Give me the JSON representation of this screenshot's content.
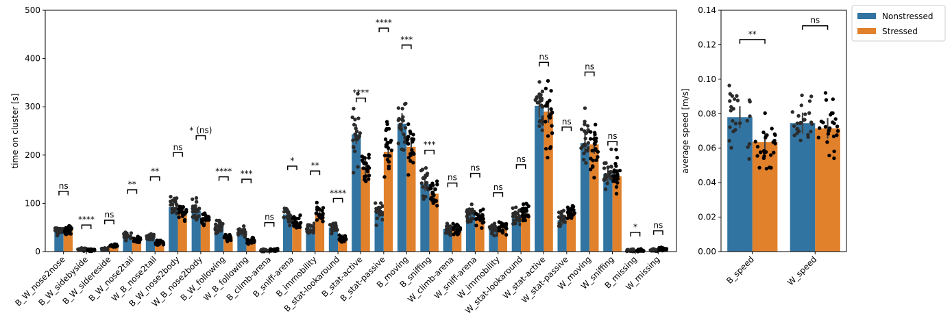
{
  "colors": {
    "nonstressed": "#3274a1",
    "stressed": "#e1812c",
    "dot_dark": "#2b2b2b",
    "dot_black": "#000000"
  },
  "legend": {
    "placement": "upper-right-outside",
    "entries": [
      "Nonstressed",
      "Stressed"
    ]
  },
  "chart_data": [
    {
      "type": "bar",
      "ylabel": "time on cluster [s]",
      "ylim": [
        0,
        500
      ],
      "yticks": [
        0,
        100,
        200,
        300,
        400,
        500
      ],
      "categories": [
        "B_W_nose2nose",
        "B_W_sidebyside",
        "B_W_sidereside",
        "B_W_nose2tail",
        "W_B_nose2tail",
        "B_W_nose2body",
        "W_B_nose2body",
        "B_W_following",
        "W_B_following",
        "B_climb-arena",
        "B_sniff-arena",
        "B_immobility",
        "B_stat-lookaround",
        "B_stat-active",
        "B_stat-passive",
        "B_moving",
        "B_sniffing",
        "W_climb-arena",
        "W_sniff-arena",
        "W_immobility",
        "W_stat-lookaround",
        "W_stat-active",
        "W_stat-passive",
        "W_moving",
        "W_sniffing",
        "B_missing",
        "W_missing"
      ],
      "series": [
        {
          "name": "Nonstressed",
          "values": [
            42,
            5,
            5,
            33,
            31,
            92,
            85,
            53,
            40,
            2,
            77,
            48,
            50,
            243,
            82,
            265,
            140,
            47,
            78,
            45,
            72,
            302,
            65,
            225,
            160,
            2,
            3
          ]
        },
        {
          "name": "Stressed",
          "values": [
            45,
            3,
            12,
            25,
            18,
            80,
            68,
            30,
            22,
            3,
            60,
            80,
            28,
            175,
            207,
            217,
            120,
            44,
            72,
            52,
            78,
            290,
            82,
            222,
            156,
            2,
            5
          ]
        }
      ],
      "significance": [
        "ns",
        "****",
        "ns",
        "**",
        "**",
        "ns",
        "* (ns)",
        "****",
        "***",
        "ns",
        "*",
        "**",
        "****",
        "****",
        "****",
        "***",
        "***",
        "ns",
        "ns",
        "ns",
        "ns",
        "ns",
        "ns",
        "ns",
        "ns",
        "*",
        "ns"
      ],
      "bracket_y": [
        125,
        55,
        65,
        128,
        155,
        205,
        240,
        155,
        150,
        60,
        177,
        167,
        110,
        318,
        463,
        428,
        210,
        142,
        162,
        122,
        180,
        392,
        258,
        372,
        228,
        40,
        43
      ]
    },
    {
      "type": "bar",
      "ylabel": "average speed [m/s]",
      "ylim": [
        0,
        0.14
      ],
      "yticks": [
        "0.00",
        "0.02",
        "0.04",
        "0.06",
        "0.08",
        "0.10",
        "0.12",
        "0.14"
      ],
      "categories": [
        "B_speed",
        "W_speed"
      ],
      "series": [
        {
          "name": "Nonstressed",
          "values": [
            0.078,
            0.0745
          ]
        },
        {
          "name": "Stressed",
          "values": [
            0.0635,
            0.0715
          ]
        }
      ],
      "significance": [
        "**",
        "ns"
      ],
      "bracket_y": [
        0.123,
        0.131
      ]
    }
  ]
}
